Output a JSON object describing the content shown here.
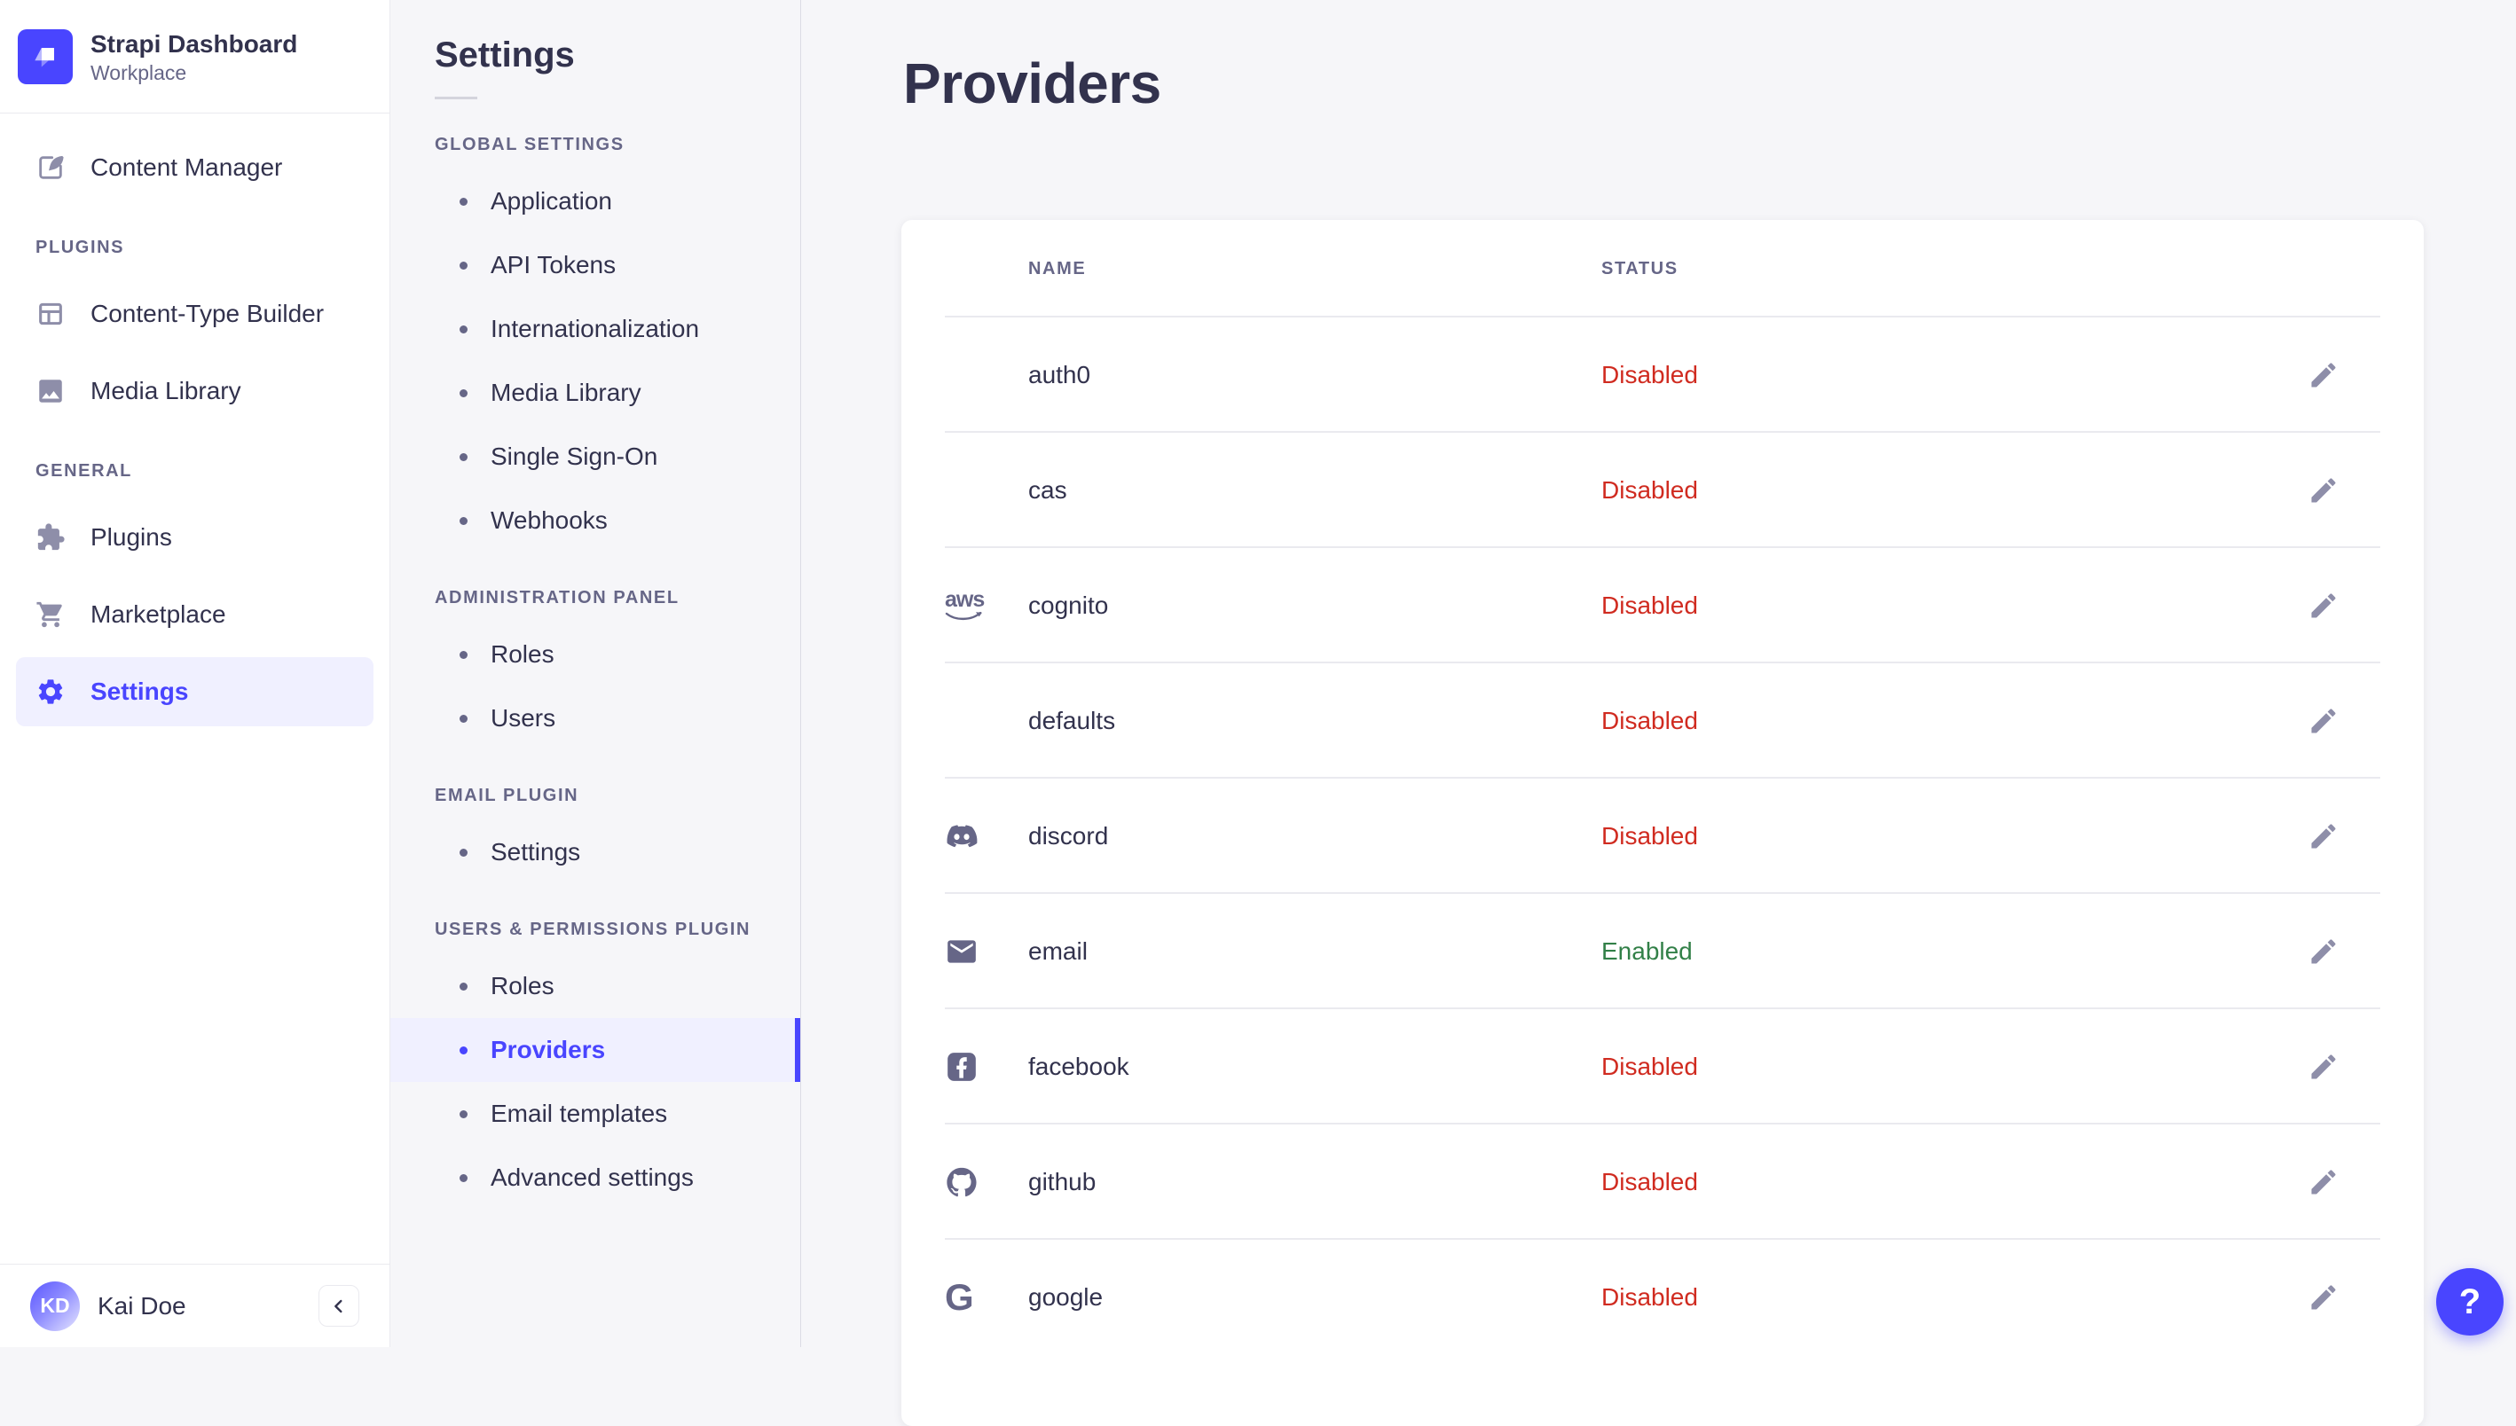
{
  "app": {
    "title": "Strapi Dashboard",
    "workspace": "Workplace"
  },
  "sidebar": {
    "groups": [
      {
        "label": "",
        "items": [
          {
            "label": "Content Manager",
            "icon": "feather-pen-icon",
            "active": false
          }
        ]
      },
      {
        "label": "PLUGINS",
        "items": [
          {
            "label": "Content-Type Builder",
            "icon": "layout-icon",
            "active": false
          },
          {
            "label": "Media Library",
            "icon": "image-icon",
            "active": false
          }
        ]
      },
      {
        "label": "GENERAL",
        "items": [
          {
            "label": "Plugins",
            "icon": "puzzle-icon",
            "active": false
          },
          {
            "label": "Marketplace",
            "icon": "cart-icon",
            "active": false
          },
          {
            "label": "Settings",
            "icon": "gear-icon",
            "active": true
          }
        ]
      }
    ],
    "user": {
      "name": "Kai Doe",
      "initials": "KD"
    }
  },
  "subnav": {
    "title": "Settings",
    "sections": [
      {
        "label": "GLOBAL SETTINGS",
        "items": [
          {
            "label": "Application",
            "active": false
          },
          {
            "label": "API Tokens",
            "active": false
          },
          {
            "label": "Internationalization",
            "active": false
          },
          {
            "label": "Media Library",
            "active": false
          },
          {
            "label": "Single Sign-On",
            "active": false
          },
          {
            "label": "Webhooks",
            "active": false
          }
        ]
      },
      {
        "label": "ADMINISTRATION PANEL",
        "items": [
          {
            "label": "Roles",
            "active": false
          },
          {
            "label": "Users",
            "active": false
          }
        ]
      },
      {
        "label": "EMAIL PLUGIN",
        "items": [
          {
            "label": "Settings",
            "active": false
          }
        ]
      },
      {
        "label": "USERS & PERMISSIONS PLUGIN",
        "items": [
          {
            "label": "Roles",
            "active": false
          },
          {
            "label": "Providers",
            "active": true
          },
          {
            "label": "Email templates",
            "active": false
          },
          {
            "label": "Advanced settings",
            "active": false
          }
        ]
      }
    ]
  },
  "main": {
    "title": "Providers",
    "table": {
      "columns": [
        "NAME",
        "STATUS"
      ],
      "rows": [
        {
          "name": "auth0",
          "icon": "",
          "status": "Disabled"
        },
        {
          "name": "cas",
          "icon": "",
          "status": "Disabled"
        },
        {
          "name": "cognito",
          "icon": "aws-icon",
          "status": "Disabled"
        },
        {
          "name": "defaults",
          "icon": "",
          "status": "Disabled"
        },
        {
          "name": "discord",
          "icon": "discord-icon",
          "status": "Disabled"
        },
        {
          "name": "email",
          "icon": "envelope-icon",
          "status": "Enabled"
        },
        {
          "name": "facebook",
          "icon": "facebook-icon",
          "status": "Disabled"
        },
        {
          "name": "github",
          "icon": "github-icon",
          "status": "Disabled"
        },
        {
          "name": "google",
          "icon": "google-icon",
          "status": "Disabled"
        }
      ]
    }
  },
  "help": {
    "label": "?"
  },
  "colors": {
    "primary": "#4945ff",
    "primary_bg": "#f0f0ff",
    "enabled": "#328048",
    "disabled": "#d02b20"
  }
}
